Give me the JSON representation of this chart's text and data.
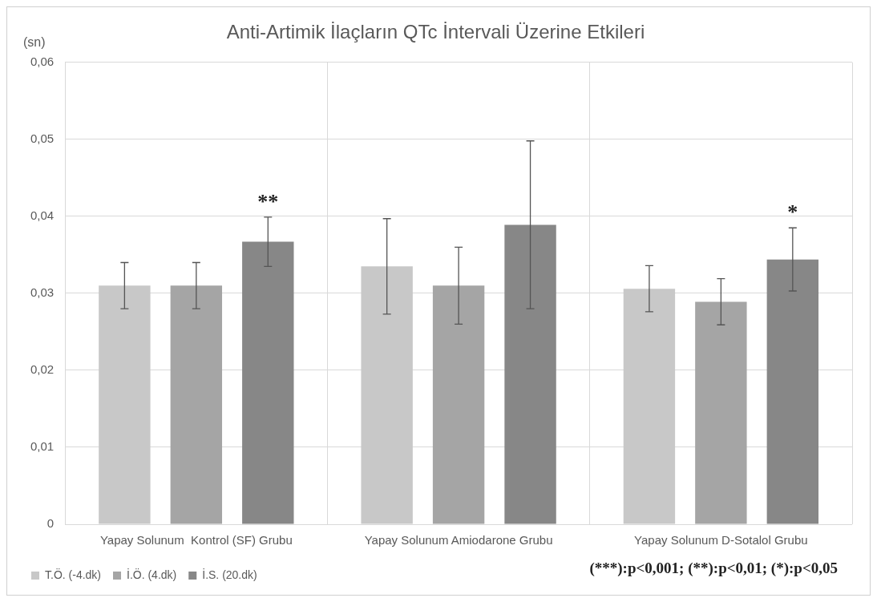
{
  "chart_data": {
    "type": "bar",
    "title": "Anti-Artimik İlaçların QTc İntervali Üzerine Etkileri",
    "ylabel": "(sn)",
    "categories": [
      "Yapay Solunum  Kontrol (SF) Grubu",
      "Yapay Solunum Amiodarone Grubu",
      "Yapay Solunum D-Sotalol Grubu"
    ],
    "series": [
      {
        "name": "T.Ö. (-4.dk)",
        "color": "#c8c8c8",
        "values": [
          0.031,
          0.0335,
          0.0306
        ],
        "errors": [
          0.003,
          0.0062,
          0.003
        ]
      },
      {
        "name": "İ.Ö. (4.dk)",
        "color": "#a5a5a5",
        "values": [
          0.031,
          0.031,
          0.0289
        ],
        "errors": [
          0.003,
          0.005,
          0.003
        ]
      },
      {
        "name": "İ.S. (20.dk)",
        "color": "#878787",
        "values": [
          0.0367,
          0.0389,
          0.0344
        ],
        "errors": [
          0.0032,
          0.0109,
          0.0041
        ]
      }
    ],
    "ylim": [
      0,
      0.06
    ],
    "yticks": [
      0,
      {
        "value": 0.01,
        "label": "0,01"
      },
      {
        "value": 0.02,
        "label": "0,02"
      },
      {
        "value": 0.03,
        "label": "0,03"
      },
      {
        "value": 0.04,
        "label": "0,04"
      },
      {
        "value": 0.05,
        "label": "0,05"
      },
      {
        "value": 0.06,
        "label": "0,06"
      }
    ],
    "grid": true,
    "legend": "bottom",
    "annotations": [
      "**",
      "*",
      "(***):p<0,001; (**):p<0,01; (*):p<0,05"
    ]
  }
}
